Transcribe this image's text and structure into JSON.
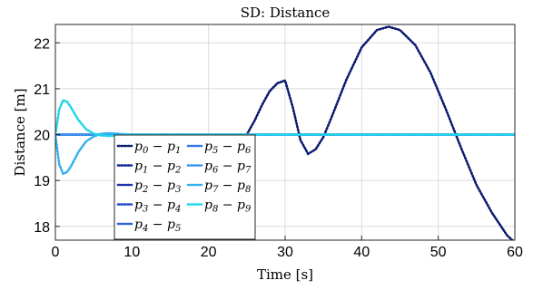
{
  "chart_data": {
    "type": "line",
    "title": "SD: Distance",
    "xlabel": "Time [s]",
    "ylabel": "Distance [m]",
    "xlim": [
      0,
      60
    ],
    "ylim": [
      17.7,
      22.4
    ],
    "xticks": [
      0,
      10,
      20,
      30,
      40,
      50,
      60
    ],
    "xtick_labels": [
      "0",
      "10",
      "20",
      "30",
      "40",
      "50",
      "60"
    ],
    "yticks": [
      18,
      19,
      20,
      21,
      22
    ],
    "ytick_labels": [
      "18",
      "19",
      "20",
      "21",
      "22"
    ],
    "grid": true,
    "line_style": "dotted",
    "legend_position": "lower-left",
    "series": [
      {
        "name": "p0 − p1",
        "label_parts": [
          "p",
          "0",
          "p",
          "1"
        ],
        "color": "#0a1a6e",
        "x": [
          0,
          10,
          20,
          25,
          26,
          27,
          28,
          29,
          30,
          31,
          32,
          33,
          34,
          35,
          36,
          38,
          40,
          42,
          43.5,
          45,
          47,
          49,
          51,
          53,
          55,
          57,
          59,
          60
        ],
        "y": [
          20.0,
          20.0,
          20.0,
          20.0,
          20.3,
          20.65,
          20.95,
          21.12,
          21.18,
          20.6,
          19.88,
          19.58,
          19.68,
          19.95,
          20.35,
          21.2,
          21.9,
          22.28,
          22.35,
          22.28,
          21.95,
          21.35,
          20.55,
          19.7,
          18.9,
          18.3,
          17.8,
          17.65
        ]
      },
      {
        "name": "p1 − p2",
        "label_parts": [
          "p",
          "1",
          "p",
          "2"
        ],
        "color": "#0d2490",
        "x": [
          0,
          60
        ],
        "y": [
          20.0,
          20.0
        ]
      },
      {
        "name": "p2 − p3",
        "label_parts": [
          "p",
          "2",
          "p",
          "3"
        ],
        "color": "#1a2fa8",
        "x": [
          0,
          60
        ],
        "y": [
          20.0,
          20.0
        ]
      },
      {
        "name": "p3 − p4",
        "label_parts": [
          "p",
          "3",
          "p",
          "4"
        ],
        "color": "#1e48c8",
        "x": [
          0,
          60
        ],
        "y": [
          20.0,
          20.0
        ]
      },
      {
        "name": "p4 − p5",
        "label_parts": [
          "p",
          "4",
          "p",
          "5"
        ],
        "color": "#2a5fd8",
        "x": [
          0,
          60
        ],
        "y": [
          20.0,
          20.0
        ]
      },
      {
        "name": "p5 − p6",
        "label_parts": [
          "p",
          "5",
          "p",
          "6"
        ],
        "color": "#2f78e8",
        "x": [
          0,
          60
        ],
        "y": [
          20.0,
          20.0
        ]
      },
      {
        "name": "p6 − p7",
        "label_parts": [
          "p",
          "6",
          "p",
          "7"
        ],
        "color": "#3a92ee",
        "x": [
          0,
          60
        ],
        "y": [
          20.0,
          20.0
        ]
      },
      {
        "name": "p7 − p8",
        "label_parts": [
          "p",
          "7",
          "p",
          "8"
        ],
        "color": "#33b0f0",
        "x": [
          0,
          0.5,
          1,
          1.5,
          2,
          3,
          4,
          5,
          6,
          7,
          8,
          10,
          12,
          60
        ],
        "y": [
          20.0,
          19.35,
          19.15,
          19.18,
          19.3,
          19.62,
          19.85,
          19.96,
          20.02,
          20.03,
          20.02,
          20.0,
          20.0,
          20.0
        ]
      },
      {
        "name": "p8 − p9",
        "label_parts": [
          "p",
          "8",
          "p",
          "9"
        ],
        "color": "#22d4ea",
        "x": [
          0,
          0.5,
          1,
          1.5,
          2,
          3,
          4,
          5,
          6,
          7,
          8,
          10,
          12,
          60
        ],
        "y": [
          20.0,
          20.55,
          20.75,
          20.72,
          20.6,
          20.32,
          20.12,
          20.02,
          19.98,
          19.97,
          19.98,
          20.0,
          20.0,
          20.0
        ]
      }
    ]
  }
}
